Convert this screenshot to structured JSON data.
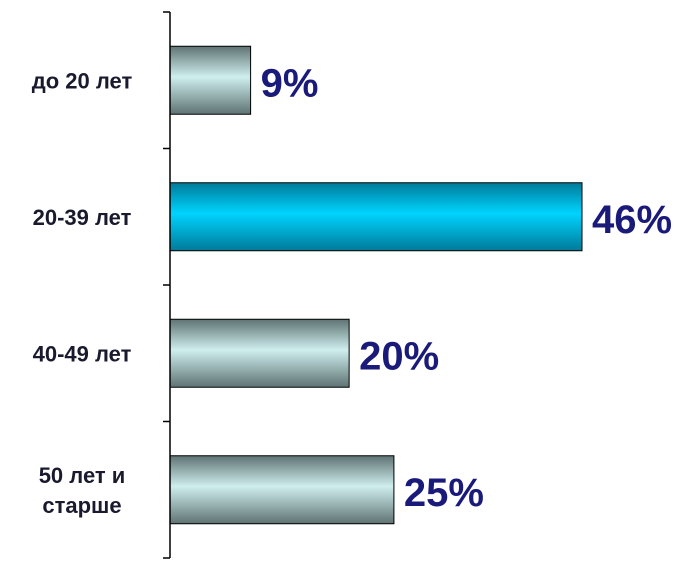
{
  "chart_data": {
    "type": "bar",
    "orientation": "horizontal",
    "categories": [
      [
        "до 20 лет"
      ],
      [
        "20-39 лет"
      ],
      [
        "40-49 лет"
      ],
      [
        "50 лет и",
        "старше"
      ]
    ],
    "values": [
      9,
      46,
      20,
      25
    ],
    "value_labels": [
      "9%",
      "46%",
      "20%",
      "25%"
    ],
    "highlight_index": 1,
    "xlim": [
      0,
      50
    ],
    "grid": false,
    "legend": "none",
    "colors": {
      "bar_default_light": "#cfeeee",
      "bar_default_dark": "#5f7373",
      "bar_highlight_light": "#00d4ff",
      "bar_highlight_dark": "#007a99",
      "value_text": "#1a1a7a",
      "category_text": "#1a1a2e",
      "axis": "#000000"
    }
  }
}
